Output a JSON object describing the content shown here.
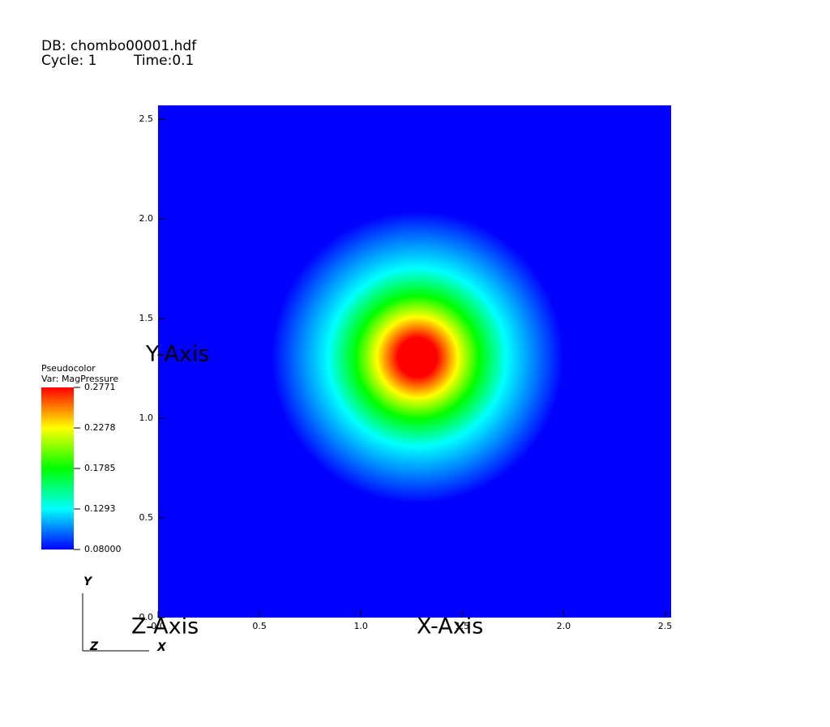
{
  "chart_data": {
    "type": "pseudocolor",
    "database": "DB: chombo00001.hdf",
    "cycle": "Cycle: 1",
    "time": "Time:0.1",
    "plot_name": "Pseudocolor",
    "variable": "Var: MagPressure",
    "x_label": "X-Axis",
    "y_label": "Y-Axis",
    "z_label": "Z-Axis",
    "triad": {
      "x": "X",
      "y": "Y",
      "z": "Z"
    },
    "xlim": [
      0,
      2.53
    ],
    "ylim": [
      0,
      2.57
    ],
    "xticks": [
      {
        "value": 0,
        "label": "0.0"
      },
      0.5,
      {
        "value": 1,
        "label": "1.0"
      },
      1.5,
      {
        "value": 2,
        "label": "2.0"
      },
      2.5
    ],
    "yticks": [
      {
        "value": 0,
        "label": "0.0"
      },
      0.5,
      {
        "value": 1,
        "label": "1.0"
      },
      1.5,
      {
        "value": 2,
        "label": "2.0"
      },
      2.5
    ],
    "colorbar_lim": [
      0.08,
      0.2771
    ],
    "colorbar_ticks": [
      {
        "value": 0.08,
        "label": "0.08000"
      },
      0.1293,
      0.1785,
      0.2278,
      0.2771
    ],
    "colormap": [
      "#0000ff",
      "#00ffff",
      "#00ff00",
      "#ffff00",
      "#ff0000"
    ]
  }
}
